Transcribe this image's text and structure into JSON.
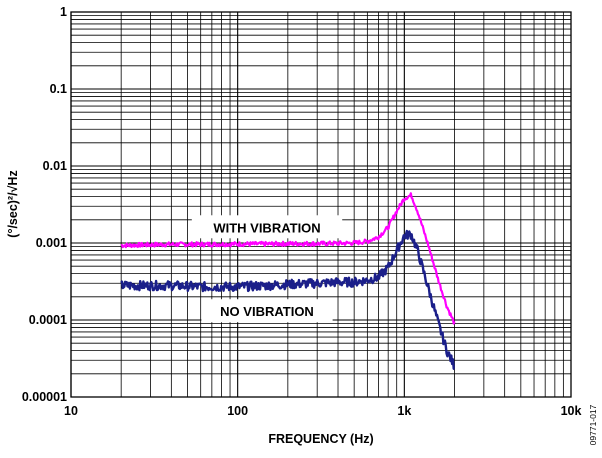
{
  "chart_data": {
    "type": "line",
    "x_scale": "log",
    "y_scale": "log",
    "xlim": [
      10,
      10000
    ],
    "ylim": [
      1e-05,
      1
    ],
    "grid": true,
    "xlabel": "FREQUENCY (Hz)",
    "ylabel": "(°/sec)²/√Hz",
    "x_tick_labels": [
      {
        "value": 10,
        "label": "10"
      },
      {
        "value": 100,
        "label": "100"
      },
      {
        "value": 1000,
        "label": "1k"
      },
      {
        "value": 10000,
        "label": "10k"
      }
    ],
    "y_tick_labels": [
      {
        "value": 1,
        "label": "1"
      },
      {
        "value": 0.1,
        "label": "0.1"
      },
      {
        "value": 0.01,
        "label": "0.01"
      },
      {
        "value": 0.001,
        "label": "0.001"
      },
      {
        "value": 0.0001,
        "label": "0.0001"
      },
      {
        "value": 1e-05,
        "label": "0.00001"
      }
    ],
    "series": [
      {
        "name": "WITH VIBRATION",
        "color": "#ff00ff",
        "x": [
          20,
          30,
          40,
          60,
          100,
          150,
          200,
          300,
          400,
          500,
          600,
          700,
          800,
          900,
          1000,
          1100,
          1200,
          1400,
          1600,
          1800,
          2000
        ],
        "y": [
          0.00093,
          0.00095,
          0.00096,
          0.00096,
          0.00097,
          0.00097,
          0.00098,
          0.00098,
          0.00099,
          0.001,
          0.00105,
          0.0012,
          0.0016,
          0.0026,
          0.0038,
          0.0042,
          0.0026,
          0.0009,
          0.00033,
          0.00015,
          9e-05
        ]
      },
      {
        "name": "NO VIBRATION",
        "color": "#1b1f8a",
        "x": [
          20,
          30,
          40,
          60,
          100,
          150,
          200,
          300,
          400,
          500,
          600,
          700,
          800,
          900,
          1000,
          1100,
          1200,
          1400,
          1600,
          1800,
          2000
        ],
        "y": [
          0.00028,
          0.00028,
          0.00028,
          0.00027,
          0.00027,
          0.00028,
          0.00029,
          0.0003,
          0.00031,
          0.00031,
          0.00033,
          0.00036,
          0.00048,
          0.0008,
          0.00125,
          0.0013,
          0.0008,
          0.00025,
          9e-05,
          4e-05,
          2.5e-05
        ]
      }
    ],
    "annotations": [
      {
        "text": "WITH VIBRATION",
        "x": 150,
        "y": 0.0016
      },
      {
        "text": "NO VIBRATION",
        "x": 150,
        "y": 0.00013
      }
    ],
    "figure_id": "09771-017"
  }
}
